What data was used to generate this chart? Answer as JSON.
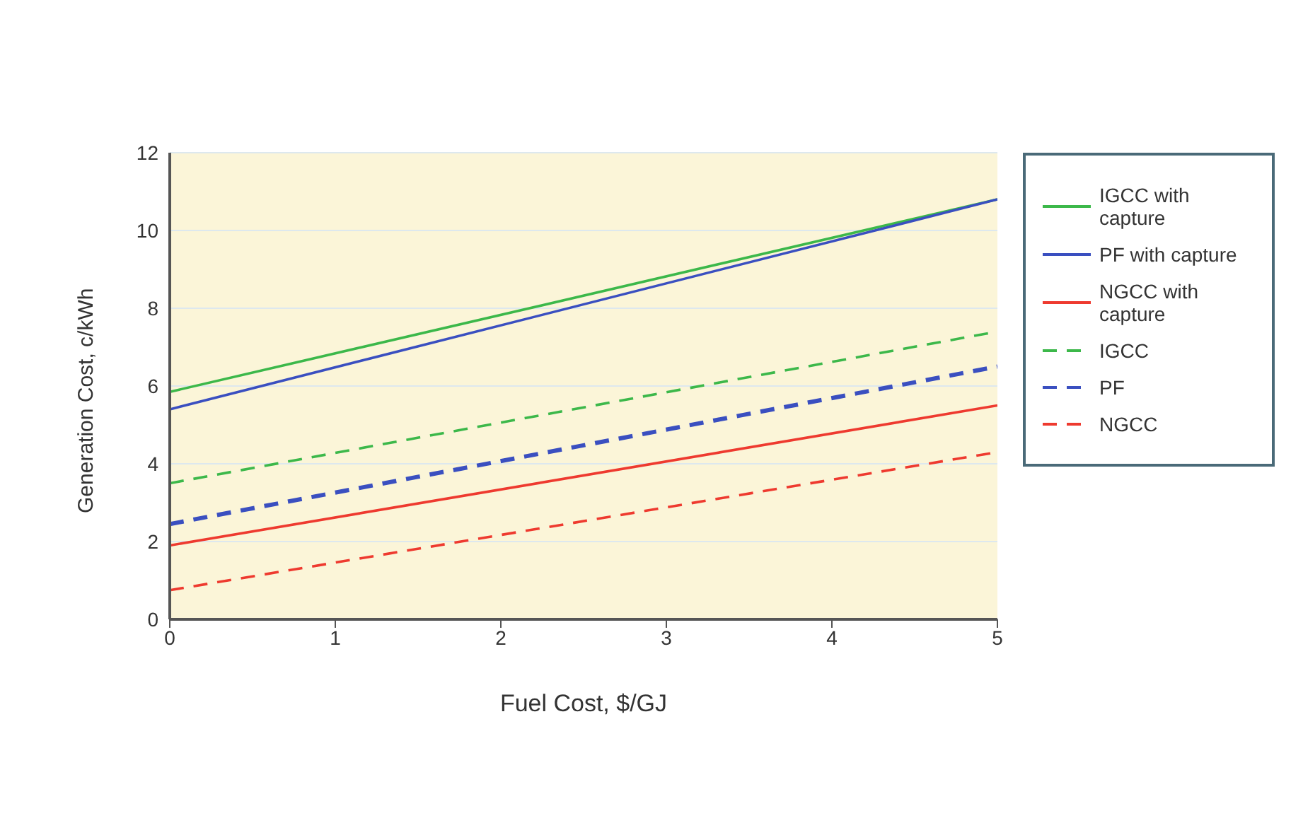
{
  "chart_data": {
    "type": "line",
    "xlabel": "Fuel Cost, $/GJ",
    "ylabel": "Generation Cost, c/kWh",
    "x": [
      0,
      5
    ],
    "series": [
      {
        "name": "IGCC with capture",
        "color": "#3cb84a",
        "values": [
          5.85,
          10.8
        ],
        "line_style": "solid"
      },
      {
        "name": "PF with capture",
        "color": "#3a4fc0",
        "values": [
          5.4,
          10.8
        ],
        "line_style": "solid"
      },
      {
        "name": "NGCC with capture",
        "color": "#ee3a2f",
        "values": [
          1.9,
          5.5
        ],
        "line_style": "solid"
      },
      {
        "name": "IGCC",
        "color": "#3cb84a",
        "values": [
          3.5,
          7.4
        ],
        "line_style": "dashed"
      },
      {
        "name": "PF",
        "color": "#3a4fc0",
        "values": [
          2.45,
          6.5
        ],
        "line_style": "dashed"
      },
      {
        "name": "NGCC",
        "color": "#ee3a2f",
        "values": [
          0.75,
          4.3
        ],
        "line_style": "dashed"
      }
    ],
    "xlim": [
      0,
      5
    ],
    "xticks": [
      0,
      1,
      2,
      3,
      4,
      5
    ],
    "ylim": [
      0,
      12
    ],
    "yticks": [
      0,
      2,
      4,
      6,
      8,
      10,
      12
    ],
    "grid": "y",
    "legend": "right",
    "marker": "none"
  }
}
